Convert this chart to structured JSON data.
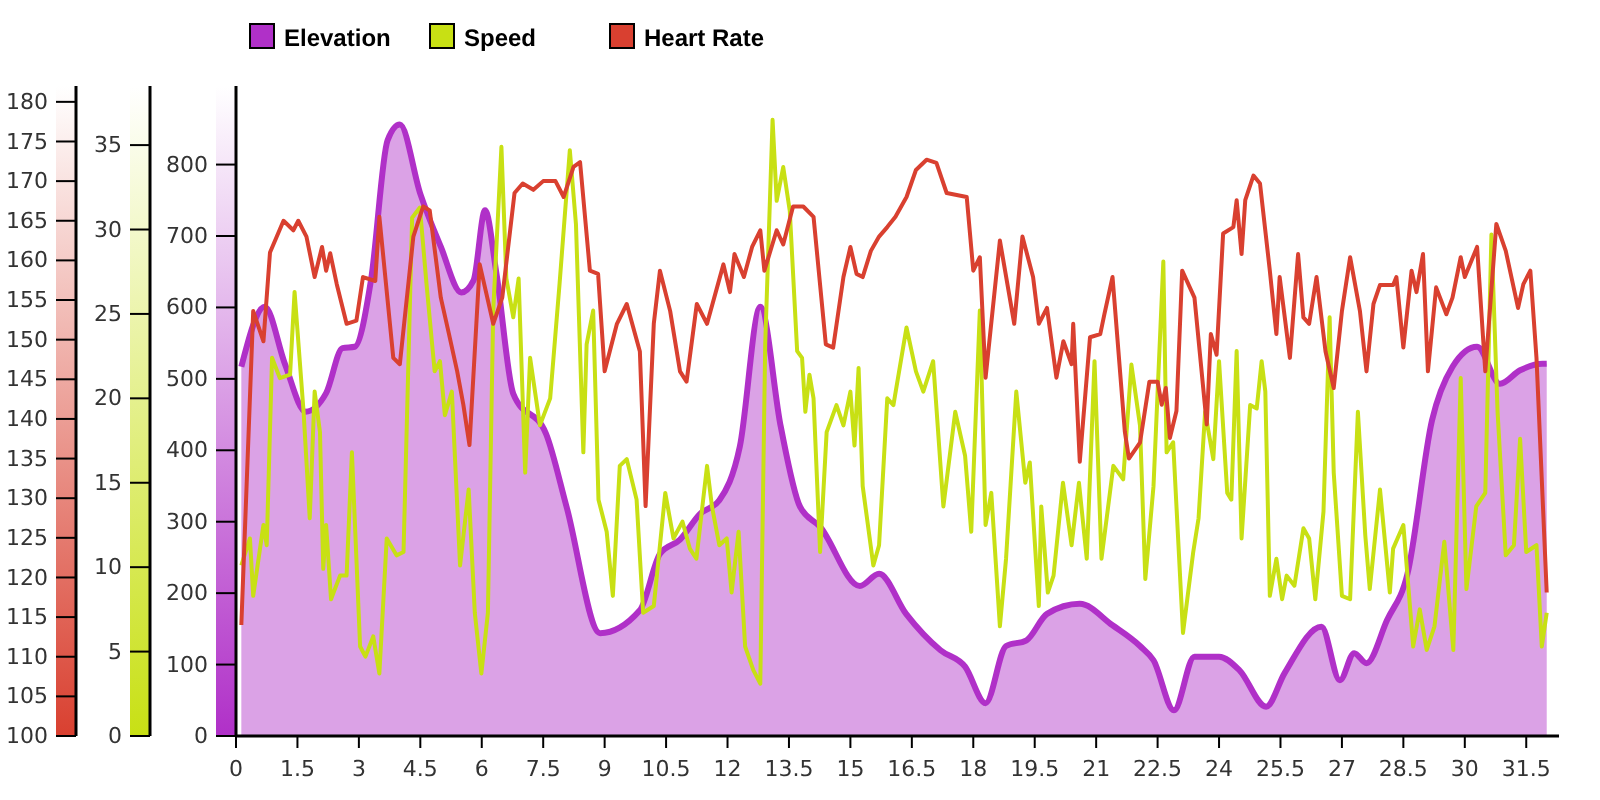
{
  "chart_data": {
    "type": "line",
    "xlim": [
      0,
      32.3
    ],
    "xticks": [
      0,
      1.5,
      3,
      4.5,
      6,
      7.5,
      9,
      10.5,
      12,
      13.5,
      15,
      16.5,
      18,
      19.5,
      21,
      22.5,
      24,
      25.5,
      27,
      28.5,
      30,
      31.5
    ],
    "ylim": [
      0,
      910
    ],
    "yticks": [
      0,
      100,
      200,
      300,
      400,
      500,
      600,
      700,
      800
    ],
    "y2lim": [
      0,
      38.5
    ],
    "y2ticks": [
      0,
      5,
      10,
      15,
      20,
      25,
      30,
      35
    ],
    "y3lim": [
      100,
      182
    ],
    "y3ticks": [
      100,
      105,
      110,
      115,
      120,
      125,
      130,
      135,
      140,
      145,
      150,
      155,
      160,
      165,
      170,
      175,
      180
    ],
    "legend": "top left",
    "grid": false,
    "series": [
      {
        "name": "Elevation",
        "type": "area",
        "axis": "y",
        "color": "#b030c8",
        "x": [
          0.13,
          0.7,
          1.2,
          1.7,
          2.2,
          2.6,
          2.9,
          3.3,
          3.7,
          4.0,
          4.5,
          5.0,
          5.5,
          5.8,
          6.08,
          6.36,
          6.77,
          7.57,
          8.07,
          8.89,
          9.86,
          10.35,
          10.84,
          11.33,
          11.8,
          12.3,
          12.8,
          13.3,
          13.77,
          14.26,
          15.23,
          15.7,
          16.36,
          17.2,
          17.8,
          18.3,
          18.8,
          19.3,
          19.8,
          20.6,
          21.4,
          22.07,
          22.4,
          22.9,
          23.4,
          24.0,
          24.5,
          25.15,
          25.6,
          26.5,
          26.95,
          27.3,
          27.6,
          28.1,
          28.6,
          29.2,
          29.7,
          30.3,
          30.86,
          31.35,
          31.9,
          32.0
        ],
        "values": [
          517,
          601,
          520,
          454,
          480,
          543,
          545,
          640,
          834,
          856,
          759,
          685,
          621,
          638,
          736,
          647,
          479,
          423,
          321,
          144,
          176,
          255,
          275,
          311,
          330,
          405,
          601,
          433,
          321,
          293,
          210,
          227,
          171,
          120,
          97,
          46,
          126,
          134,
          171,
          185,
          155,
          126,
          106,
          36,
          111,
          111,
          92,
          41,
          88,
          153,
          78,
          116,
          102,
          162,
          227,
          442,
          517,
          545,
          493,
          512,
          521,
          521
        ]
      },
      {
        "name": "Speed",
        "axis": "y2",
        "color": "#c8e014",
        "x": [
          0.13,
          0.34,
          0.42,
          0.67,
          0.75,
          0.88,
          1.07,
          1.32,
          1.43,
          1.65,
          1.8,
          1.92,
          2.05,
          2.13,
          2.2,
          2.32,
          2.54,
          2.7,
          2.83,
          3.03,
          3.16,
          3.35,
          3.5,
          3.68,
          3.92,
          4.09,
          4.3,
          4.49,
          4.65,
          4.85,
          4.98,
          5.1,
          5.27,
          5.47,
          5.68,
          5.83,
          5.99,
          6.15,
          6.28,
          6.48,
          6.6,
          6.77,
          6.9,
          7.06,
          7.18,
          7.42,
          7.67,
          7.9,
          8.15,
          8.3,
          8.48,
          8.56,
          8.72,
          8.85,
          9.05,
          9.2,
          9.37,
          9.54,
          9.78,
          9.94,
          10.2,
          10.48,
          10.68,
          10.9,
          11.08,
          11.24,
          11.5,
          11.62,
          11.8,
          11.98,
          12.1,
          12.27,
          12.43,
          12.63,
          12.8,
          12.92,
          13.1,
          13.2,
          13.36,
          13.52,
          13.7,
          13.82,
          13.9,
          14.0,
          14.1,
          14.26,
          14.42,
          14.66,
          14.83,
          15.0,
          15.1,
          15.2,
          15.3,
          15.56,
          15.7,
          15.9,
          16.05,
          16.37,
          16.6,
          16.78,
          17.02,
          17.27,
          17.56,
          17.8,
          17.95,
          18.16,
          18.3,
          18.44,
          18.65,
          18.8,
          19.05,
          19.27,
          19.38,
          19.6,
          19.66,
          19.82,
          19.96,
          20.19,
          20.4,
          20.58,
          20.77,
          20.96,
          21.13,
          21.42,
          21.66,
          21.86,
          22.07,
          22.2,
          22.4,
          22.64,
          22.72,
          22.88,
          23.12,
          23.37,
          23.5,
          23.66,
          23.86,
          24.0,
          24.2,
          24.3,
          24.43,
          24.55,
          24.76,
          24.92,
          25.04,
          25.13,
          25.24,
          25.4,
          25.54,
          25.65,
          25.84,
          26.06,
          26.2,
          26.35,
          26.55,
          26.7,
          26.8,
          27.0,
          27.2,
          27.39,
          27.57,
          27.68,
          27.93,
          28.17,
          28.25,
          28.5,
          28.74,
          28.9,
          29.07,
          29.26,
          29.5,
          29.72,
          29.9,
          30.04,
          30.28,
          30.5,
          30.65,
          30.8,
          31.0,
          31.2,
          31.35,
          31.5,
          31.75,
          31.88,
          32.0
        ],
        "values": [
          10.1,
          11.7,
          8.3,
          12.5,
          11.3,
          22.4,
          21.2,
          21.4,
          26.3,
          19.2,
          12.9,
          20.4,
          18,
          9.9,
          12.5,
          8.1,
          9.5,
          9.5,
          16.8,
          5.3,
          4.7,
          5.9,
          3.7,
          11.7,
          10.7,
          10.9,
          30.7,
          31.3,
          26.8,
          21.6,
          22.2,
          19,
          20.4,
          10.1,
          14.6,
          7.3,
          3.7,
          7.3,
          25.2,
          34.9,
          27.1,
          24.8,
          27.1,
          15.6,
          22.4,
          18.4,
          20,
          26.8,
          34.7,
          30.3,
          16.8,
          23.2,
          25.2,
          14,
          12.1,
          8.3,
          16,
          16.4,
          14,
          7.3,
          7.7,
          14.4,
          11.7,
          12.7,
          11.1,
          10.5,
          16,
          13.6,
          11.3,
          11.7,
          8.5,
          12.1,
          5.3,
          3.9,
          3.1,
          23.2,
          36.5,
          31.7,
          33.7,
          31.1,
          22.8,
          22.4,
          19.2,
          21.4,
          20,
          10.9,
          18,
          19.6,
          18.4,
          20.4,
          17.2,
          21.8,
          14.8,
          10.1,
          11.3,
          20,
          19.6,
          24.2,
          21.6,
          20.4,
          22.2,
          13.6,
          19.2,
          16.6,
          12.1,
          25.2,
          12.5,
          14.4,
          6.5,
          10.5,
          20.4,
          15,
          16.2,
          7.7,
          13.6,
          8.5,
          9.5,
          15,
          11.3,
          15,
          10.5,
          22.2,
          10.5,
          16,
          15.2,
          22,
          18.4,
          9.3,
          14.8,
          28.1,
          16.8,
          17.4,
          6.1,
          10.9,
          12.9,
          19.2,
          16.4,
          22.2,
          14.4,
          14,
          22.8,
          11.7,
          19.6,
          19.4,
          22.2,
          20.4,
          8.3,
          10.5,
          8.1,
          9.5,
          8.9,
          12.3,
          11.7,
          8.1,
          13.3,
          24.8,
          15.6,
          8.3,
          8.1,
          19.2,
          11.9,
          8.7,
          14.6,
          8.5,
          11.1,
          12.5,
          5.3,
          7.5,
          5.1,
          6.5,
          11.5,
          5.1,
          21.2,
          8.7,
          13.6,
          14.4,
          29.7,
          19.2,
          10.7,
          11.3,
          17.6,
          10.9,
          11.3,
          5.3,
          7.3
        ]
      },
      {
        "name": "Heart Rate",
        "axis": "y3",
        "color": "#d94030",
        "x": [
          0.13,
          0.42,
          0.67,
          0.83,
          1.16,
          1.4,
          1.52,
          1.72,
          1.92,
          2.1,
          2.2,
          2.3,
          2.46,
          2.7,
          2.94,
          3.1,
          3.4,
          3.5,
          3.84,
          4.0,
          4.33,
          4.57,
          4.73,
          5.0,
          5.2,
          5.4,
          5.55,
          5.7,
          5.95,
          6.28,
          6.5,
          6.8,
          7.0,
          7.26,
          7.5,
          7.8,
          8.0,
          8.24,
          8.4,
          8.64,
          8.84,
          9.0,
          9.3,
          9.54,
          9.86,
          10.0,
          10.2,
          10.35,
          10.6,
          10.84,
          11.0,
          11.25,
          11.5,
          11.9,
          12.06,
          12.17,
          12.4,
          12.6,
          12.8,
          12.9,
          13.2,
          13.36,
          13.6,
          13.85,
          14.1,
          14.4,
          14.58,
          14.83,
          15.0,
          15.15,
          15.3,
          15.5,
          15.7,
          15.9,
          16.1,
          16.37,
          16.6,
          16.86,
          17.1,
          17.35,
          17.84,
          18.0,
          18.16,
          18.3,
          18.65,
          19.0,
          19.2,
          19.46,
          19.6,
          19.8,
          20.03,
          20.2,
          20.4,
          20.44,
          20.6,
          20.85,
          21.1,
          21.2,
          21.4,
          21.7,
          21.8,
          22.07,
          22.3,
          22.5,
          22.6,
          22.7,
          22.8,
          22.96,
          23.1,
          23.4,
          23.7,
          23.8,
          23.94,
          24.1,
          24.35,
          24.43,
          24.55,
          24.64,
          24.84,
          25.0,
          25.24,
          25.4,
          25.48,
          25.73,
          25.93,
          26.06,
          26.2,
          26.38,
          26.6,
          26.8,
          27.0,
          27.2,
          27.44,
          27.6,
          27.77,
          27.93,
          28.25,
          28.33,
          28.5,
          28.7,
          28.82,
          28.98,
          29.1,
          29.3,
          29.55,
          29.7,
          29.9,
          30.0,
          30.3,
          30.5,
          30.77,
          31.0,
          31.3,
          31.43,
          31.6,
          31.75,
          32.0
        ],
        "values": [
          114,
          153.6,
          149.8,
          161,
          165,
          163.8,
          165,
          163,
          157.9,
          161.7,
          158.7,
          160.9,
          157,
          152,
          152.4,
          157.9,
          157.4,
          165.5,
          147.7,
          146.9,
          163,
          166.8,
          166.3,
          155.3,
          150.7,
          146,
          141.8,
          136.7,
          159.5,
          152,
          155.3,
          168.5,
          169.7,
          168.9,
          170,
          170,
          168,
          171.8,
          172.4,
          158.7,
          158.3,
          146,
          152,
          154.5,
          148.5,
          129,
          152,
          158.7,
          153.6,
          146,
          144.7,
          154.5,
          152,
          159.5,
          156,
          160.8,
          157.9,
          161.7,
          163.8,
          158.7,
          163.8,
          162,
          166.8,
          166.8,
          165.5,
          149.4,
          149,
          157.9,
          161.7,
          158.3,
          157.9,
          161.2,
          163,
          164.2,
          165.5,
          168,
          171.4,
          172.7,
          172.3,
          168.5,
          168,
          158.7,
          160.4,
          145.2,
          162.5,
          152,
          163,
          157.9,
          152,
          154,
          145.2,
          149.8,
          146.9,
          152,
          134.6,
          150.3,
          150.7,
          153.2,
          157.9,
          138.4,
          135,
          137,
          144.7,
          144.7,
          141.8,
          143.9,
          137.6,
          141,
          158.7,
          155.3,
          139.3,
          150.7,
          148.1,
          163.4,
          164.2,
          167.6,
          160.8,
          167.6,
          170.7,
          169.7,
          158.7,
          150.7,
          157.9,
          147.7,
          160.8,
          152.8,
          152,
          157.9,
          148.5,
          143.9,
          153.6,
          160.4,
          153.6,
          146,
          154.5,
          156.9,
          156.9,
          157.9,
          149,
          158.7,
          156,
          160.8,
          146,
          156.6,
          153.2,
          155.3,
          160.4,
          157.9,
          161.7,
          146,
          164.6,
          161.2,
          154,
          157,
          158.7,
          147.7,
          118.1
        ]
      }
    ]
  }
}
